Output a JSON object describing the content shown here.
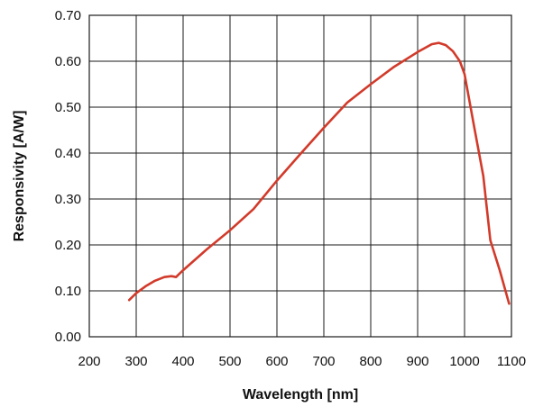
{
  "chart_data": {
    "type": "line",
    "xlabel": "Wavelength [nm]",
    "ylabel": "Responsivity [A/W]",
    "xlim": [
      200,
      1100
    ],
    "ylim": [
      0.0,
      0.7
    ],
    "x_ticks": [
      "200",
      "300",
      "400",
      "500",
      "600",
      "700",
      "800",
      "900",
      "1000",
      "1100"
    ],
    "y_ticks": [
      "0.00",
      "0.10",
      "0.20",
      "0.30",
      "0.40",
      "0.50",
      "0.60",
      "0.70"
    ],
    "grid": true,
    "line_color": "#d23a2a",
    "series": [
      {
        "x": [
          285,
          300,
          320,
          340,
          360,
          375,
          385,
          390,
          400,
          450,
          500,
          550,
          600,
          650,
          700,
          750,
          800,
          850,
          900,
          930,
          945,
          960,
          975,
          990,
          1000,
          1020,
          1040,
          1055,
          1075,
          1095
        ],
        "y": [
          0.08,
          0.095,
          0.11,
          0.122,
          0.13,
          0.132,
          0.13,
          0.135,
          0.145,
          0.19,
          0.232,
          0.278,
          0.34,
          0.398,
          0.455,
          0.51,
          0.55,
          0.588,
          0.62,
          0.637,
          0.64,
          0.635,
          0.622,
          0.6,
          0.572,
          0.46,
          0.35,
          0.21,
          0.145,
          0.072
        ]
      }
    ]
  }
}
